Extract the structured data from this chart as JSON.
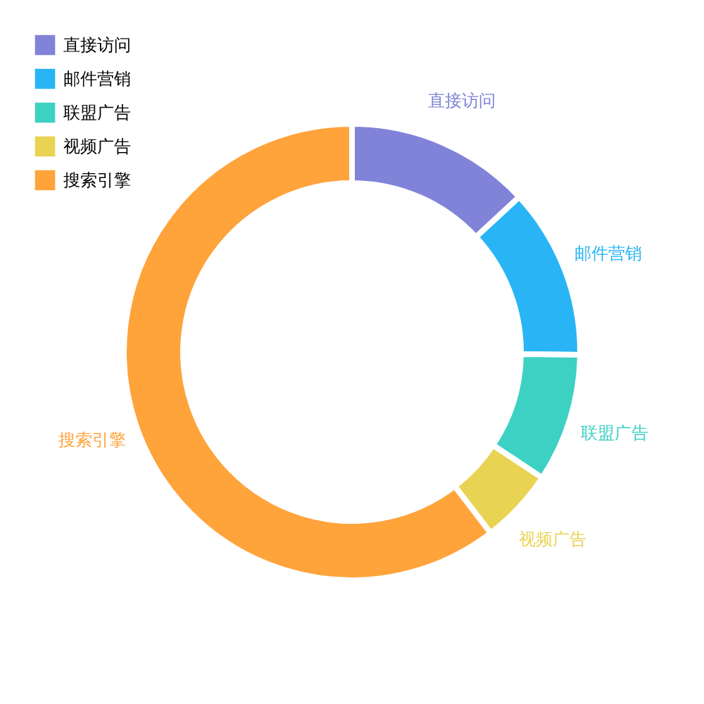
{
  "chart_data": {
    "type": "donut",
    "categories": [
      "直接访问",
      "邮件营销",
      "联盟广告",
      "视频广告",
      "搜索引擎"
    ],
    "values": [
      13.1,
      12.1,
      9.1,
      5.3,
      60.4
    ],
    "colors": [
      "#8083d8",
      "#29b5f5",
      "#3dd1c4",
      "#e9d353",
      "#ffa33b"
    ],
    "legend": "top left"
  }
}
